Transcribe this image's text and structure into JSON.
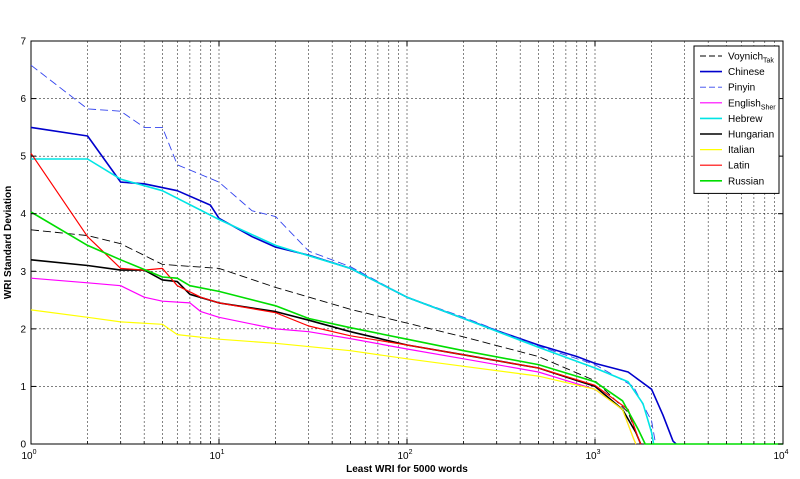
{
  "chart_data": {
    "type": "line",
    "xscale": "log",
    "xlim": [
      1,
      10000
    ],
    "ylim": [
      0,
      7
    ],
    "grid": true,
    "legend_position": "top-right",
    "xlabel": "Least WRI for 5000 words",
    "ylabel": "WRI Standard Deviation",
    "x_ticks": [
      {
        "base": "10",
        "exp": "0"
      },
      {
        "base": "10",
        "exp": "1"
      },
      {
        "base": "10",
        "exp": "2"
      },
      {
        "base": "10",
        "exp": "3"
      },
      {
        "base": "10",
        "exp": "4"
      }
    ],
    "y_ticks": [
      "0",
      "1",
      "2",
      "3",
      "4",
      "5",
      "6",
      "7"
    ],
    "series": [
      {
        "name": "Voynich",
        "name_sub": "Tak",
        "color": "#000000",
        "dash": "8,4",
        "width": 0.9,
        "points": [
          [
            1,
            3.72
          ],
          [
            2,
            3.62
          ],
          [
            3,
            3.48
          ],
          [
            5,
            3.12
          ],
          [
            10,
            3.05
          ],
          [
            20,
            2.72
          ],
          [
            50,
            2.34
          ],
          [
            100,
            2.1
          ],
          [
            200,
            1.86
          ],
          [
            500,
            1.52
          ],
          [
            1000,
            1.1
          ],
          [
            1500,
            0.55
          ],
          [
            1700,
            0.1
          ],
          [
            1750,
            0
          ]
        ]
      },
      {
        "name": "Chinese",
        "name_sub": "",
        "color": "#0000cc",
        "dash": "",
        "width": 1.6,
        "points": [
          [
            1,
            5.5
          ],
          [
            2,
            5.35
          ],
          [
            3,
            4.55
          ],
          [
            4,
            4.52
          ],
          [
            6,
            4.4
          ],
          [
            9,
            4.15
          ],
          [
            10,
            3.92
          ],
          [
            15,
            3.6
          ],
          [
            20,
            3.42
          ],
          [
            30,
            3.28
          ],
          [
            50,
            3.05
          ],
          [
            100,
            2.55
          ],
          [
            200,
            2.18
          ],
          [
            300,
            1.97
          ],
          [
            500,
            1.72
          ],
          [
            800,
            1.52
          ],
          [
            1000,
            1.4
          ],
          [
            1500,
            1.25
          ],
          [
            2000,
            0.95
          ],
          [
            2300,
            0.5
          ],
          [
            2600,
            0.05
          ],
          [
            2700,
            0
          ]
        ]
      },
      {
        "name": "Pinyin",
        "name_sub": "",
        "color": "#3344ee",
        "dash": "8,4",
        "width": 0.9,
        "points": [
          [
            1,
            6.58
          ],
          [
            2,
            5.82
          ],
          [
            3,
            5.78
          ],
          [
            4,
            5.5
          ],
          [
            5,
            5.5
          ],
          [
            6,
            4.85
          ],
          [
            10,
            4.55
          ],
          [
            15,
            4.05
          ],
          [
            20,
            3.95
          ],
          [
            30,
            3.35
          ],
          [
            50,
            3.08
          ],
          [
            100,
            2.55
          ],
          [
            200,
            2.2
          ],
          [
            500,
            1.7
          ],
          [
            1000,
            1.38
          ],
          [
            1600,
            1.0
          ],
          [
            2000,
            0.4
          ],
          [
            2100,
            0
          ]
        ]
      },
      {
        "name": "English",
        "name_sub": "Sher",
        "color": "#ff00ff",
        "dash": "",
        "width": 1.2,
        "points": [
          [
            1,
            2.88
          ],
          [
            2,
            2.8
          ],
          [
            3,
            2.75
          ],
          [
            4,
            2.55
          ],
          [
            5,
            2.48
          ],
          [
            7,
            2.45
          ],
          [
            8,
            2.3
          ],
          [
            10,
            2.2
          ],
          [
            20,
            2.0
          ],
          [
            30,
            1.95
          ],
          [
            50,
            1.83
          ],
          [
            100,
            1.65
          ],
          [
            200,
            1.48
          ],
          [
            500,
            1.25
          ],
          [
            1000,
            0.95
          ],
          [
            1400,
            0.6
          ],
          [
            1600,
            0.1
          ],
          [
            1650,
            0
          ]
        ]
      },
      {
        "name": "Hebrew",
        "name_sub": "",
        "color": "#00e5e5",
        "dash": "",
        "width": 1.6,
        "points": [
          [
            1,
            4.95
          ],
          [
            2,
            4.95
          ],
          [
            3,
            4.6
          ],
          [
            5,
            4.4
          ],
          [
            10,
            3.9
          ],
          [
            20,
            3.45
          ],
          [
            30,
            3.27
          ],
          [
            50,
            3.05
          ],
          [
            100,
            2.55
          ],
          [
            200,
            2.18
          ],
          [
            500,
            1.68
          ],
          [
            1000,
            1.32
          ],
          [
            1500,
            1.08
          ],
          [
            1800,
            0.7
          ],
          [
            2000,
            0.2
          ],
          [
            2050,
            0
          ]
        ]
      },
      {
        "name": "Hungarian",
        "name_sub": "",
        "color": "#000000",
        "dash": "",
        "width": 1.6,
        "points": [
          [
            1,
            3.2
          ],
          [
            2,
            3.1
          ],
          [
            3,
            3.02
          ],
          [
            4,
            3.02
          ],
          [
            5,
            2.85
          ],
          [
            6,
            2.82
          ],
          [
            7,
            2.6
          ],
          [
            10,
            2.45
          ],
          [
            20,
            2.3
          ],
          [
            30,
            2.15
          ],
          [
            50,
            1.95
          ],
          [
            100,
            1.72
          ],
          [
            200,
            1.55
          ],
          [
            500,
            1.32
          ],
          [
            1000,
            1.0
          ],
          [
            1400,
            0.6
          ],
          [
            1650,
            0.2
          ],
          [
            1750,
            0
          ]
        ]
      },
      {
        "name": "Italian",
        "name_sub": "",
        "color": "#ffff00",
        "dash": "",
        "width": 1.2,
        "points": [
          [
            1,
            2.33
          ],
          [
            2,
            2.2
          ],
          [
            3,
            2.12
          ],
          [
            5,
            2.08
          ],
          [
            6,
            1.9
          ],
          [
            10,
            1.82
          ],
          [
            20,
            1.75
          ],
          [
            50,
            1.62
          ],
          [
            100,
            1.48
          ],
          [
            200,
            1.35
          ],
          [
            500,
            1.18
          ],
          [
            1000,
            0.95
          ],
          [
            1400,
            0.6
          ],
          [
            1600,
            0.1
          ],
          [
            1650,
            0
          ]
        ]
      },
      {
        "name": "Latin",
        "name_sub": "",
        "color": "#ff0000",
        "dash": "",
        "width": 1.2,
        "points": [
          [
            1,
            5.05
          ],
          [
            2,
            3.6
          ],
          [
            3,
            3.05
          ],
          [
            4,
            3.02
          ],
          [
            5,
            3.05
          ],
          [
            6,
            2.75
          ],
          [
            8,
            2.55
          ],
          [
            10,
            2.45
          ],
          [
            20,
            2.28
          ],
          [
            30,
            2.05
          ],
          [
            50,
            1.88
          ],
          [
            100,
            1.72
          ],
          [
            200,
            1.55
          ],
          [
            500,
            1.32
          ],
          [
            1000,
            1.02
          ],
          [
            1500,
            0.6
          ],
          [
            1700,
            0.1
          ],
          [
            1750,
            0
          ]
        ]
      },
      {
        "name": "Russian",
        "name_sub": "",
        "color": "#00dd00",
        "dash": "",
        "width": 1.6,
        "points": [
          [
            1,
            4.03
          ],
          [
            2,
            3.45
          ],
          [
            3,
            3.2
          ],
          [
            5,
            2.9
          ],
          [
            6,
            2.88
          ],
          [
            7,
            2.75
          ],
          [
            10,
            2.65
          ],
          [
            20,
            2.4
          ],
          [
            30,
            2.18
          ],
          [
            50,
            2.02
          ],
          [
            100,
            1.82
          ],
          [
            200,
            1.62
          ],
          [
            500,
            1.38
          ],
          [
            1000,
            1.08
          ],
          [
            1400,
            0.75
          ],
          [
            1700,
            0.25
          ],
          [
            1850,
            0
          ],
          [
            10000,
            0
          ]
        ]
      }
    ]
  }
}
